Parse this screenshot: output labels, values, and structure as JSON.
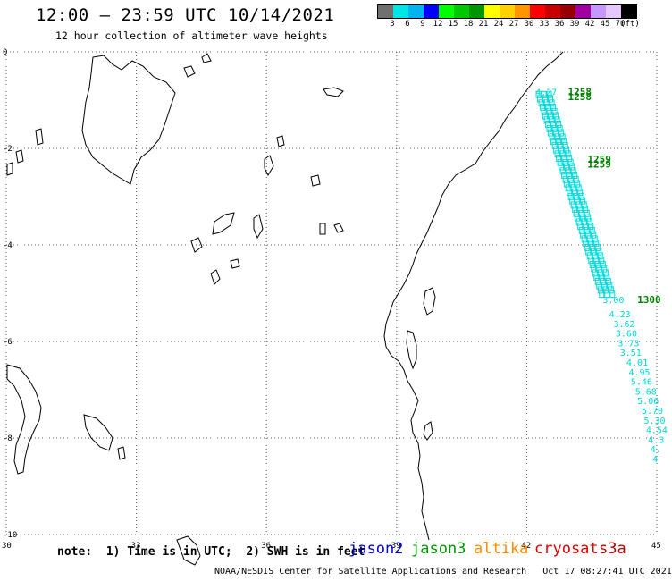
{
  "header": {
    "title": "12:00 – 23:59 UTC 10/14/2021",
    "subtitle": "12 hour collection of altimeter wave heights"
  },
  "colorbar": {
    "colors": [
      "#707070",
      "#00e6e6",
      "#00b4f0",
      "#0000ff",
      "#00ff00",
      "#00c800",
      "#009600",
      "#ffff00",
      "#ffd200",
      "#ff9600",
      "#ff0000",
      "#c80000",
      "#960000",
      "#a000a0",
      "#c896ff",
      "#e6c8ff",
      "#000000"
    ],
    "labels": [
      "3",
      "6",
      "9",
      "12",
      "15",
      "18",
      "21",
      "24",
      "27",
      "30",
      "33",
      "36",
      "39",
      "42",
      "45",
      "70",
      "(ft)"
    ]
  },
  "axes": {
    "x_ticks": [
      "30",
      "33",
      "36",
      "39",
      "42",
      "45"
    ],
    "y_ticks": [
      "0",
      "-2",
      "-4",
      "-6",
      "-8",
      "-10"
    ],
    "xlim": [
      30,
      45
    ],
    "ylim": [
      -10,
      0
    ]
  },
  "satellite_tracks": [
    {
      "satellite": "jason3",
      "color": "#008000",
      "time_labels": [
        {
          "text": "1258",
          "lon": 42.95,
          "lat": -0.9
        },
        {
          "text": "1258",
          "lon": 42.95,
          "lat": -1.0
        },
        {
          "text": "1259",
          "lon": 43.4,
          "lat": -2.3
        },
        {
          "text": "1259",
          "lon": 43.4,
          "lat": -2.4
        },
        {
          "text": "1300",
          "lon": 44.55,
          "lat": -5.2
        }
      ]
    },
    {
      "satellite": "s3a",
      "color": "#00d8d8",
      "observations": [
        {
          "swh": "4.27",
          "lon": 42.2,
          "lat": -0.9
        },
        {
          "swh": "3.00",
          "lon": 43.75,
          "lat": -5.2
        },
        {
          "swh": "4.23",
          "lon": 43.9,
          "lat": -5.5
        },
        {
          "swh": "3.62",
          "lon": 44.0,
          "lat": -5.7
        },
        {
          "swh": "3.60",
          "lon": 44.05,
          "lat": -5.9
        },
        {
          "swh": "3.73",
          "lon": 44.1,
          "lat": -6.1
        },
        {
          "swh": "3.51",
          "lon": 44.15,
          "lat": -6.3
        },
        {
          "swh": "4.01",
          "lon": 44.3,
          "lat": -6.5
        },
        {
          "swh": "4.95",
          "lon": 44.35,
          "lat": -6.7
        },
        {
          "swh": "5.46",
          "lon": 44.4,
          "lat": -6.9
        },
        {
          "swh": "5.68",
          "lon": 44.5,
          "lat": -7.1
        },
        {
          "swh": "5.06",
          "lon": 44.55,
          "lat": -7.3
        },
        {
          "swh": "5.70",
          "lon": 44.65,
          "lat": -7.5
        },
        {
          "swh": "5.30",
          "lon": 44.7,
          "lat": -7.7
        },
        {
          "swh": "4.54",
          "lon": 44.75,
          "lat": -7.9
        },
        {
          "swh": "4.3",
          "lon": 44.8,
          "lat": -8.1
        },
        {
          "swh": "4.",
          "lon": 44.85,
          "lat": -8.3
        },
        {
          "swh": "4",
          "lon": 44.9,
          "lat": -8.5
        }
      ]
    }
  ],
  "footer": {
    "note": "note:  1) Time is in UTC;  2) SWH is in feet",
    "satellites": [
      {
        "name": "jason2",
        "color": "#0000cc"
      },
      {
        "name": "jason3",
        "color": "#009600"
      },
      {
        "name": "altika",
        "color": "#ff8c00"
      },
      {
        "name": "cryosat",
        "color": "#dd0000"
      },
      {
        "name": "s3a",
        "color": "#b40000"
      }
    ],
    "credit": "NOAA/NESDIS Center for Satellite Applications and Research   Oct 17 08:27:41 UTC 2021"
  }
}
